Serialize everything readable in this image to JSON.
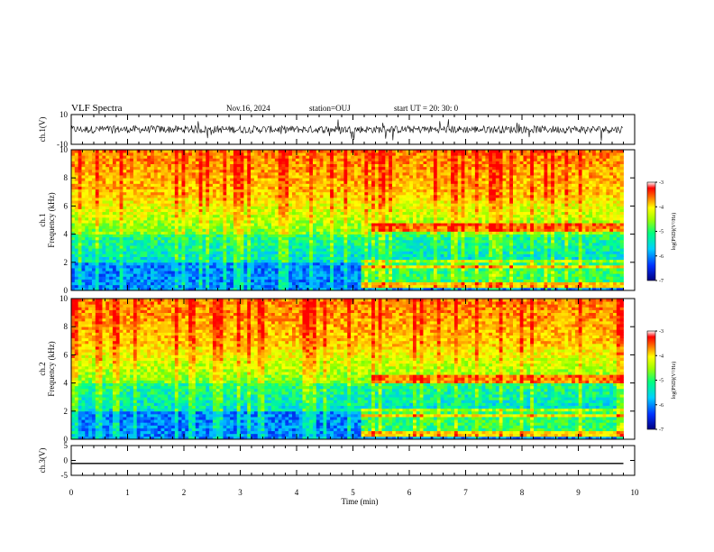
{
  "header": {
    "title": "VLF Spectra",
    "date": "Nov.16, 2024",
    "station": "station=OUJ",
    "start": "start  UT =   20: 30: 0"
  },
  "chart_data": [
    {
      "type": "line",
      "panel": "ch1-waveform",
      "ylabel": "ch.1(V)",
      "ylim": [
        -10,
        10
      ],
      "yticks": [
        "10",
        "-10"
      ],
      "xlim": [
        0,
        10
      ],
      "series": [
        {
          "x": [
            0,
            9.8
          ],
          "y": [
            0,
            0
          ]
        }
      ]
    },
    {
      "type": "heatmap",
      "panel": "ch1-spectrogram",
      "ylabel": "ch.1\nFrequency  (kHz)",
      "ylim": [
        0,
        10
      ],
      "yticks": [
        "0",
        "2",
        "4",
        "6",
        "8",
        "10"
      ],
      "xlim": [
        0,
        10
      ],
      "data_end_min": 9.8,
      "colorbar": {
        "range": [
          -7,
          -3
        ],
        "ticks": [
          "-3",
          "-4",
          "-5",
          "-6",
          "-7"
        ],
        "label": "log(PSD)(V²/Hz)"
      }
    },
    {
      "type": "heatmap",
      "panel": "ch2-spectrogram",
      "ylabel": "ch.2\nFrequency  (kHz)",
      "ylim": [
        0,
        10
      ],
      "yticks": [
        "0",
        "2",
        "4",
        "6",
        "8",
        "10"
      ],
      "xlim": [
        0,
        10
      ],
      "data_end_min": 9.8,
      "colorbar": {
        "range": [
          -7,
          -3
        ],
        "ticks": [
          "-3",
          "-4",
          "-5",
          "-6",
          "-7"
        ],
        "label": "log(PSD)(V²/Hz)"
      }
    },
    {
      "type": "line",
      "panel": "ch3-waveform",
      "ylabel": "ch.3(V)",
      "ylim": [
        -5,
        5
      ],
      "yticks": [
        "5",
        "0",
        "-5"
      ],
      "xlim": [
        0,
        10
      ],
      "series": [
        {
          "x": [
            0,
            9.8
          ],
          "y": [
            -1.0,
            -1.0
          ]
        }
      ]
    }
  ],
  "xaxis": {
    "label": "Time  (min)",
    "ticks": [
      "0",
      "1",
      "2",
      "3",
      "4",
      "5",
      "6",
      "7",
      "8",
      "9",
      "10"
    ]
  },
  "colors": {
    "colormap": [
      "#0000a0",
      "#0040ff",
      "#00c0ff",
      "#00ff90",
      "#80ff00",
      "#ffff00",
      "#ffa000",
      "#ff0000",
      "#ffffff"
    ],
    "axes": "#000000"
  }
}
